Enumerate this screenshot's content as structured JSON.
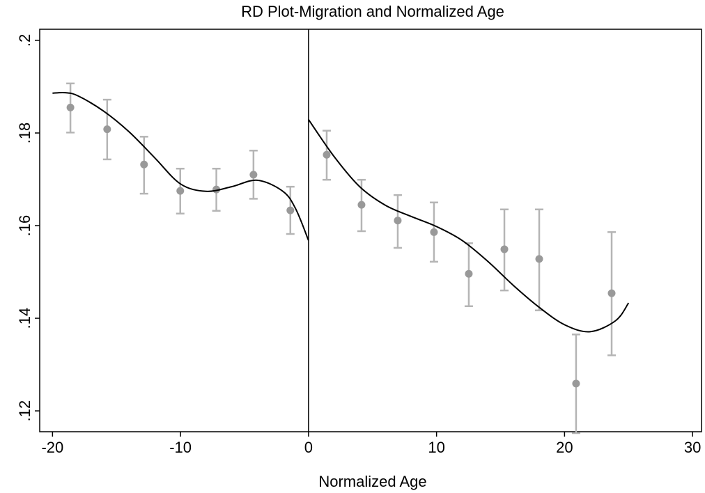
{
  "chart_data": {
    "type": "scatter",
    "title": "RD Plot-Migration and Normalized Age",
    "xlabel": "Normalized Age",
    "x": [
      -18.6,
      -15.73,
      -12.85,
      -10.02,
      -7.2,
      -4.3,
      -1.42,
      1.42,
      4.14,
      6.97,
      9.8,
      12.52,
      15.3,
      18.02,
      20.9,
      23.68
    ],
    "values": [
      0.1855,
      0.1808,
      0.1732,
      0.1675,
      0.1678,
      0.171,
      0.1633,
      0.1753,
      0.1645,
      0.1611,
      0.1586,
      0.1496,
      0.1549,
      0.1528,
      0.1259,
      0.1454
    ],
    "ci_low": [
      0.1801,
      0.1743,
      0.1669,
      0.1626,
      0.1632,
      0.1658,
      0.1582,
      0.1699,
      0.1588,
      0.1552,
      0.1522,
      0.1426,
      0.146,
      0.1417,
      0.1152,
      0.132
    ],
    "ci_high": [
      0.1907,
      0.1872,
      0.1792,
      0.1723,
      0.1723,
      0.1762,
      0.1684,
      0.1805,
      0.1699,
      0.1666,
      0.165,
      0.1562,
      0.1635,
      0.1635,
      0.1365,
      0.1586
    ],
    "color": "#999999",
    "ci_color": "#b5b5b5",
    "fits": [
      {
        "x": [
          -20,
          -19,
          -18,
          -16,
          -14,
          -12,
          -10,
          -8,
          -6,
          -4,
          -2,
          -1,
          0
        ],
        "values": [
          0.1886,
          0.1887,
          0.188,
          0.1847,
          0.1802,
          0.1746,
          0.169,
          0.1674,
          0.1684,
          0.1698,
          0.1674,
          0.1636,
          0.1568
        ]
      },
      {
        "x": [
          0,
          2,
          4,
          6,
          8,
          10,
          12,
          14,
          16,
          18,
          20,
          22,
          24,
          25
        ],
        "values": [
          0.1829,
          0.1749,
          0.1684,
          0.1644,
          0.162,
          0.1598,
          0.1568,
          0.1523,
          0.1471,
          0.1424,
          0.1386,
          0.1371,
          0.1395,
          0.1433
        ]
      }
    ],
    "fit_color": "#000000",
    "cutoff": 0,
    "xlim": [
      -21,
      30.7
    ],
    "ylim": [
      0.1155,
      0.2024
    ],
    "xticks": [
      -20,
      -10,
      0,
      10,
      20,
      30
    ],
    "yticks": [
      {
        "value": 0.12,
        "label": ".12"
      },
      {
        "value": 0.14,
        "label": ".14"
      },
      {
        "value": 0.16,
        "label": ".16"
      },
      {
        "value": 0.18,
        "label": ".18"
      },
      {
        "value": 0.2,
        "label": ".2"
      }
    ]
  }
}
